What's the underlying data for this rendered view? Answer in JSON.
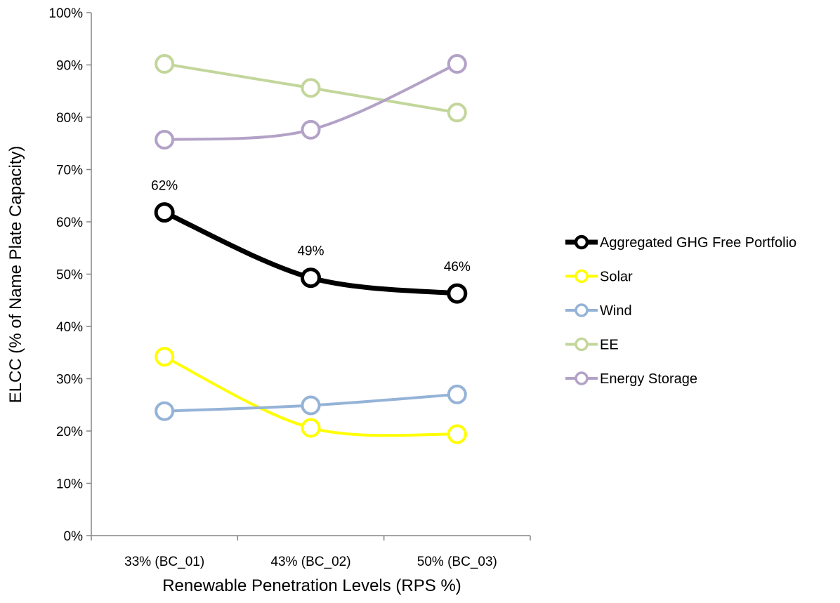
{
  "chart_data": {
    "type": "line",
    "title": "",
    "xlabel": "Renewable Penetration Levels (RPS %)",
    "ylabel": "ELCC (% of Name Plate Capacity)",
    "categories": [
      "33% (BC_01)",
      "43% (BC_02)",
      "50% (BC_03)"
    ],
    "ylim": [
      0,
      100
    ],
    "yticks": [
      0,
      10,
      20,
      30,
      40,
      50,
      60,
      70,
      80,
      90,
      100
    ],
    "ytick_labels": [
      "0%",
      "10%",
      "20%",
      "30%",
      "40%",
      "50%",
      "60%",
      "70%",
      "80%",
      "90%",
      "100%"
    ],
    "grid": false,
    "legend_position": "right",
    "smooth_lines": true,
    "series": [
      {
        "name": "Aggregated GHG Free Portfolio",
        "values": [
          61.8,
          49.3,
          46.3
        ],
        "color": "#000000",
        "emphasis": true,
        "data_labels": [
          "62%",
          "49%",
          "46%"
        ]
      },
      {
        "name": "Solar",
        "values": [
          34.2,
          20.6,
          19.4
        ],
        "color": "#ffff00",
        "emphasis": false
      },
      {
        "name": "Wind",
        "values": [
          23.8,
          24.9,
          27.0
        ],
        "color": "#95b3d7",
        "emphasis": false
      },
      {
        "name": "EE",
        "values": [
          90.2,
          85.6,
          80.9
        ],
        "color": "#c3d69b",
        "emphasis": false
      },
      {
        "name": "Energy Storage",
        "values": [
          75.7,
          77.6,
          90.2
        ],
        "color": "#b3a2c7",
        "emphasis": false
      }
    ]
  }
}
